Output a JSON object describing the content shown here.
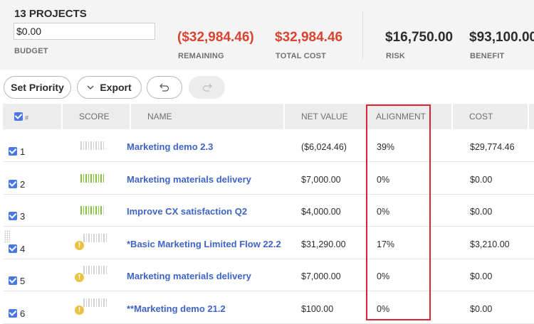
{
  "summary": {
    "title": "13 PROJECTS",
    "budget": {
      "value": "$0.00",
      "label": "BUDGET"
    },
    "remaining": {
      "value": "($32,984.46)",
      "label": "REMAINING"
    },
    "total_cost": {
      "value": "$32,984.46",
      "label": "TOTAL COST"
    },
    "risk": {
      "value": "$16,750.00",
      "label": "RISK"
    },
    "benefit": {
      "value": "$93,100.00",
      "label": "BENEFIT"
    }
  },
  "toolbar": {
    "set_priority_label": "Set Priority",
    "export_label": "Export",
    "undo_icon": "undo-icon",
    "redo_icon": "redo-icon",
    "redo_disabled": true
  },
  "table": {
    "columns": {
      "select": "#",
      "score": "SCORE",
      "name": "NAME",
      "net_value": "NET VALUE",
      "alignment": "ALIGNMENT",
      "cost": "COST"
    },
    "highlighted_column": "ALIGNMENT",
    "rows": [
      {
        "num": "1",
        "checked": true,
        "score_filled": 0,
        "warning": false,
        "name": "Marketing demo 2.3",
        "net_value": "($6,024.46)",
        "alignment": "39%",
        "cost": "$29,774.46"
      },
      {
        "num": "2",
        "checked": true,
        "score_filled": 10,
        "warning": false,
        "name": "Marketing materials delivery",
        "net_value": "$7,000.00",
        "alignment": "0%",
        "cost": "$0.00"
      },
      {
        "num": "3",
        "checked": true,
        "score_filled": 9,
        "warning": false,
        "name": "Improve CX satisfaction Q2",
        "net_value": "$4,000.00",
        "alignment": "0%",
        "cost": "$0.00"
      },
      {
        "num": "4",
        "checked": true,
        "score_filled": 0,
        "warning": true,
        "name": "*Basic Marketing Limited Flow 22.2",
        "net_value": "$31,290.00",
        "alignment": "17%",
        "cost": "$3,210.00"
      },
      {
        "num": "5",
        "checked": true,
        "score_filled": 0,
        "warning": true,
        "name": "Marketing materials delivery",
        "net_value": "$7,000.00",
        "alignment": "0%",
        "cost": "$0.00"
      },
      {
        "num": "6",
        "checked": true,
        "score_filled": 0,
        "warning": true,
        "name": "**Marketing demo 21.2",
        "net_value": "$100.00",
        "alignment": "0%",
        "cost": "$0.00"
      }
    ]
  },
  "colors": {
    "negative": "#d9432f",
    "link": "#3f64c8",
    "checkbox": "#4a78e3",
    "score_fill": "#86c440",
    "score_empty": "#d3d3d3",
    "warning": "#eac344",
    "highlight_border": "#e0242f"
  }
}
